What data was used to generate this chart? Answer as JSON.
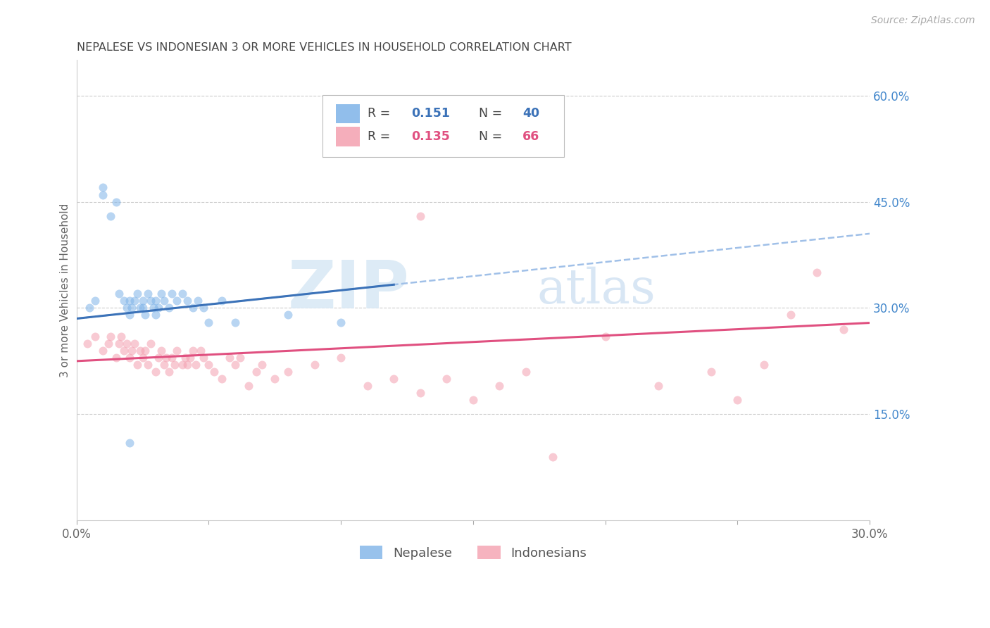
{
  "title": "NEPALESE VS INDONESIAN 3 OR MORE VEHICLES IN HOUSEHOLD CORRELATION CHART",
  "source": "Source: ZipAtlas.com",
  "ylabel": "3 or more Vehicles in Household",
  "xlim": [
    0.0,
    0.3
  ],
  "ylim": [
    0.0,
    0.65
  ],
  "xticks": [
    0.0,
    0.05,
    0.1,
    0.15,
    0.2,
    0.25,
    0.3
  ],
  "xticklabels": [
    "0.0%",
    "",
    "",
    "",
    "",
    "",
    "30.0%"
  ],
  "right_yticks": [
    0.15,
    0.3,
    0.45,
    0.6
  ],
  "right_yticklabels": [
    "15.0%",
    "30.0%",
    "45.0%",
    "60.0%"
  ],
  "nepalese_R": "0.151",
  "nepalese_N": "40",
  "indonesian_R": "0.135",
  "indonesian_N": "66",
  "blue_color": "#7EB3E8",
  "pink_color": "#F4A0B0",
  "blue_line_color": "#3B72B8",
  "pink_line_color": "#E05080",
  "dashed_line_color": "#A0C0E8",
  "legend_blue_label": "Nepalese",
  "legend_pink_label": "Indonesians",
  "background_color": "#FFFFFF",
  "grid_color": "#CCCCCC",
  "title_color": "#444444",
  "right_tick_color": "#4488CC",
  "nepalese_x": [
    0.005,
    0.007,
    0.01,
    0.01,
    0.013,
    0.015,
    0.016,
    0.018,
    0.019,
    0.02,
    0.02,
    0.021,
    0.022,
    0.023,
    0.024,
    0.025,
    0.025,
    0.026,
    0.027,
    0.028,
    0.029,
    0.03,
    0.03,
    0.031,
    0.032,
    0.033,
    0.035,
    0.036,
    0.038,
    0.04,
    0.042,
    0.044,
    0.046,
    0.048,
    0.05,
    0.055,
    0.06,
    0.08,
    0.1,
    0.02
  ],
  "nepalese_y": [
    0.3,
    0.31,
    0.46,
    0.47,
    0.43,
    0.45,
    0.32,
    0.31,
    0.3,
    0.29,
    0.31,
    0.3,
    0.31,
    0.32,
    0.3,
    0.3,
    0.31,
    0.29,
    0.32,
    0.31,
    0.3,
    0.29,
    0.31,
    0.3,
    0.32,
    0.31,
    0.3,
    0.32,
    0.31,
    0.32,
    0.31,
    0.3,
    0.31,
    0.3,
    0.28,
    0.31,
    0.28,
    0.29,
    0.28,
    0.11
  ],
  "indonesian_x": [
    0.004,
    0.007,
    0.01,
    0.012,
    0.013,
    0.015,
    0.016,
    0.017,
    0.018,
    0.019,
    0.02,
    0.021,
    0.022,
    0.023,
    0.024,
    0.025,
    0.026,
    0.027,
    0.028,
    0.03,
    0.031,
    0.032,
    0.033,
    0.034,
    0.035,
    0.036,
    0.037,
    0.038,
    0.04,
    0.041,
    0.042,
    0.043,
    0.044,
    0.045,
    0.047,
    0.048,
    0.05,
    0.052,
    0.055,
    0.058,
    0.06,
    0.062,
    0.065,
    0.068,
    0.07,
    0.075,
    0.08,
    0.09,
    0.1,
    0.11,
    0.12,
    0.13,
    0.14,
    0.15,
    0.16,
    0.17,
    0.18,
    0.2,
    0.22,
    0.24,
    0.25,
    0.26,
    0.27,
    0.28,
    0.29,
    0.13
  ],
  "indonesian_y": [
    0.25,
    0.26,
    0.24,
    0.25,
    0.26,
    0.23,
    0.25,
    0.26,
    0.24,
    0.25,
    0.23,
    0.24,
    0.25,
    0.22,
    0.24,
    0.23,
    0.24,
    0.22,
    0.25,
    0.21,
    0.23,
    0.24,
    0.22,
    0.23,
    0.21,
    0.23,
    0.22,
    0.24,
    0.22,
    0.23,
    0.22,
    0.23,
    0.24,
    0.22,
    0.24,
    0.23,
    0.22,
    0.21,
    0.2,
    0.23,
    0.22,
    0.23,
    0.19,
    0.21,
    0.22,
    0.2,
    0.21,
    0.22,
    0.23,
    0.19,
    0.2,
    0.18,
    0.2,
    0.17,
    0.19,
    0.21,
    0.09,
    0.26,
    0.19,
    0.21,
    0.17,
    0.22,
    0.29,
    0.35,
    0.27,
    0.43
  ],
  "watermark_zip": "ZIP",
  "watermark_atlas": "atlas",
  "marker_size": 75,
  "marker_alpha": 0.55,
  "figsize": [
    14.06,
    8.92
  ],
  "dpi": 100,
  "nep_trend_x_solid_end": 0.12,
  "ind_trend_x_end": 0.3,
  "nep_trend_intercept": 0.285,
  "nep_trend_slope": 0.4,
  "ind_trend_intercept": 0.225,
  "ind_trend_slope": 0.18
}
